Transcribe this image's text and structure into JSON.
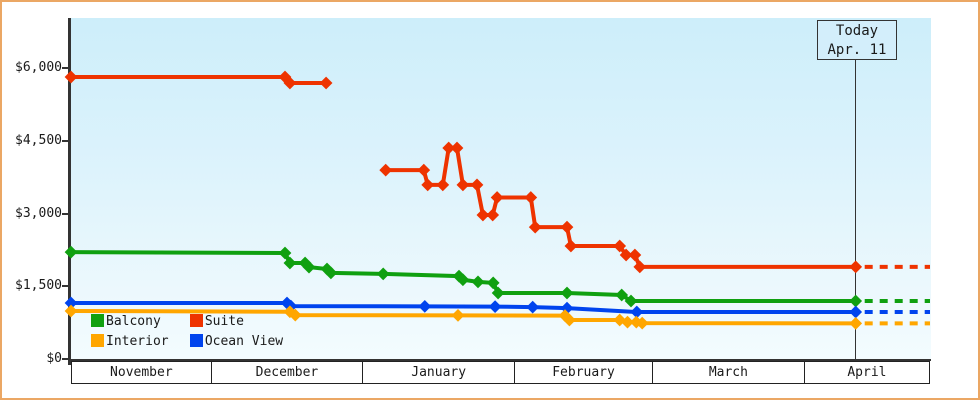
{
  "colors": {
    "balcony": "#10a010",
    "suite": "#ee3300",
    "interior": "#ffa600",
    "ocean_view": "#0044ee",
    "frame_border": "#eba764",
    "axis": "#333333",
    "plot_bg_top": "#cdeefa",
    "plot_bg_bottom": "#f3fcff"
  },
  "legend": {
    "items": [
      {
        "id": "balcony",
        "label": "Balcony",
        "color_key": "balcony"
      },
      {
        "id": "suite",
        "label": "Suite",
        "color_key": "suite"
      },
      {
        "id": "interior",
        "label": "Interior",
        "color_key": "interior"
      },
      {
        "id": "ocean_view",
        "label": "Ocean View",
        "color_key": "ocean_view"
      }
    ]
  },
  "today": {
    "line1": "Today",
    "line2": "Apr. 11"
  },
  "chart_data": {
    "type": "line",
    "grid": false,
    "legend_position": "inside-bottom-left",
    "x_axis": {
      "unit": "days_since_chart_start",
      "range": [
        0,
        175.8
      ],
      "months": [
        "November",
        "December",
        "January",
        "February",
        "March",
        "April"
      ],
      "month_bounds_days": [
        0,
        28.8,
        59.8,
        90.9,
        119.1,
        150.2,
        175.8
      ]
    },
    "y_axis": {
      "range": [
        0,
        7031
      ],
      "ticks": [
        {
          "label": "$6,000",
          "value": 6000
        },
        {
          "label": "$4,500",
          "value": 4500
        },
        {
          "label": "$3,000",
          "value": 3000
        },
        {
          "label": "$1,500",
          "value": 1500
        },
        {
          "label": "$0",
          "value": 0
        }
      ]
    },
    "today_marker": {
      "label_line1": "Today",
      "label_line2": "Apr. 11",
      "day": 160.6
    },
    "series": [
      {
        "name": "Suite",
        "color_key": "suite",
        "segments": [
          [
            [
              0,
              5815
            ],
            [
              43.8,
              5815
            ],
            [
              44.8,
              5690
            ],
            [
              52.2,
              5690
            ]
          ],
          [
            [
              64.4,
              3895
            ],
            [
              72.2,
              3895
            ],
            [
              73,
              3590
            ],
            [
              76.1,
              3590
            ],
            [
              77.3,
              4350
            ],
            [
              79,
              4350
            ],
            [
              80.2,
              3590
            ],
            [
              83.1,
              3590
            ],
            [
              84.3,
              2970
            ],
            [
              86.3,
              2970
            ],
            [
              87.2,
              3330
            ],
            [
              94.1,
              3330
            ],
            [
              95,
              2720
            ],
            [
              101.5,
              2720
            ],
            [
              102.3,
              2330
            ],
            [
              112.3,
              2330
            ],
            [
              113.6,
              2145
            ],
            [
              115.4,
              2145
            ],
            [
              116.4,
              1900
            ],
            [
              160.6,
              1900
            ]
          ]
        ],
        "dash_tail": {
          "from_day": 160.6,
          "to_day": 175.8,
          "price": 1900
        }
      },
      {
        "name": "Balcony",
        "color_key": "balcony",
        "segments": [
          [
            [
              0,
              2205
            ],
            [
              43.8,
              2185
            ],
            [
              44.8,
              1980
            ],
            [
              47.9,
              1980
            ],
            [
              48.7,
              1895
            ],
            [
              52.4,
              1855
            ],
            [
              53.2,
              1775
            ],
            [
              63.9,
              1755
            ],
            [
              79.4,
              1710
            ],
            [
              80.2,
              1635
            ],
            [
              83.3,
              1590
            ],
            [
              86.4,
              1570
            ],
            [
              87.4,
              1360
            ],
            [
              101.5,
              1360
            ],
            [
              112.7,
              1320
            ],
            [
              114.6,
              1195
            ],
            [
              160.6,
              1195
            ]
          ]
        ],
        "dash_tail": {
          "from_day": 160.6,
          "to_day": 175.8,
          "price": 1195
        }
      },
      {
        "name": "Ocean View",
        "color_key": "ocean_view",
        "segments": [
          [
            [
              0,
              1155
            ],
            [
              44.2,
              1155
            ],
            [
              45,
              1090
            ],
            [
              72.4,
              1085
            ],
            [
              86.8,
              1080
            ],
            [
              94.5,
              1070
            ],
            [
              101.5,
              1050
            ],
            [
              115.8,
              970
            ],
            [
              160.6,
              970
            ]
          ]
        ],
        "dash_tail": {
          "from_day": 160.6,
          "to_day": 175.8,
          "price": 970
        }
      },
      {
        "name": "Interior",
        "color_key": "interior",
        "segments": [
          [
            [
              0,
              990
            ],
            [
              44.8,
              975
            ],
            [
              45.9,
              905
            ],
            [
              79.2,
              900
            ],
            [
              101.1,
              895
            ],
            [
              102,
              805
            ],
            [
              112.3,
              805
            ],
            [
              113.9,
              760
            ],
            [
              115.7,
              760
            ],
            [
              116.9,
              740
            ],
            [
              160.6,
              735
            ]
          ]
        ],
        "dash_tail": {
          "from_day": 160.6,
          "to_day": 175.8,
          "price": 735
        }
      }
    ]
  }
}
